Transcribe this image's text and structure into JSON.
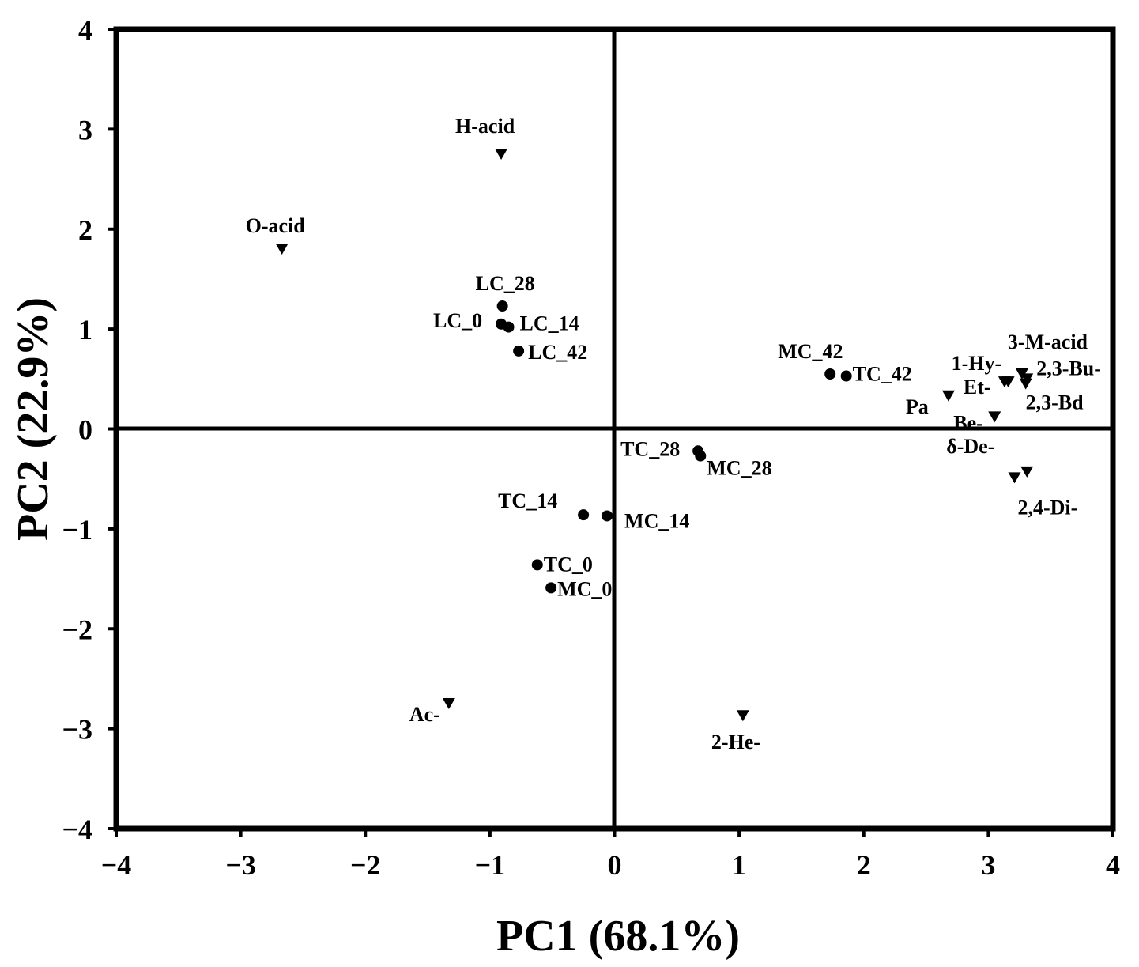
{
  "chart_data": {
    "type": "scatter",
    "title": "",
    "xlabel": "PC1 (68.1%)",
    "ylabel": "PC2 (22.9%)",
    "xlim": [
      -4,
      4
    ],
    "ylim": [
      -4,
      4
    ],
    "xticks": [
      "−4",
      "−3",
      "−2",
      "−1",
      "0",
      "1",
      "2",
      "3",
      "4"
    ],
    "yticks": [
      "4",
      "3",
      "2",
      "1",
      "0",
      "−1",
      "−2",
      "−3",
      "−4"
    ],
    "grid": false,
    "legend": "none",
    "colors": {
      "marker": "#000000",
      "axis": "#000000"
    },
    "series": [
      {
        "marker": "circle",
        "points": [
          {
            "label": "LC_28",
            "x": -0.9,
            "y": 1.23
          },
          {
            "label": "LC_0",
            "x": -0.91,
            "y": 1.05
          },
          {
            "label": "LC_14",
            "x": -0.85,
            "y": 1.02
          },
          {
            "label": "LC_42",
            "x": -0.77,
            "y": 0.78
          },
          {
            "label": "MC_42",
            "x": 1.73,
            "y": 0.55
          },
          {
            "label": "TC_42",
            "x": 1.86,
            "y": 0.53
          },
          {
            "label": "TC_28",
            "x": 0.67,
            "y": -0.22
          },
          {
            "label": "MC_28",
            "x": 0.69,
            "y": -0.27
          },
          {
            "label": "TC_14",
            "x": -0.25,
            "y": -0.86
          },
          {
            "label": "MC_14",
            "x": -0.06,
            "y": -0.87
          },
          {
            "label": "TC_0",
            "x": -0.62,
            "y": -1.36
          },
          {
            "label": "MC_0",
            "x": -0.51,
            "y": -1.59
          }
        ]
      },
      {
        "marker": "triangle-down",
        "points": [
          {
            "label": "H-acid",
            "x": -0.91,
            "y": 2.75
          },
          {
            "label": "O-acid",
            "x": -2.67,
            "y": 1.8
          },
          {
            "label": "3-M-acid",
            "x": 3.27,
            "y": 0.55
          },
          {
            "label": "1-Hy-",
            "x": 3.16,
            "y": 0.47
          },
          {
            "label": "2,3-Bu-",
            "x": 3.31,
            "y": 0.5
          },
          {
            "label": "Et-",
            "x": 3.13,
            "y": 0.47
          },
          {
            "label": "Pa",
            "x": 2.68,
            "y": 0.33
          },
          {
            "label": "2,3-Bd",
            "x": 3.3,
            "y": 0.45
          },
          {
            "label": "Be-",
            "x": 3.05,
            "y": 0.12
          },
          {
            "label": "δ-De-",
            "x": 3.31,
            "y": -0.43
          },
          {
            "label": "2,4-Di-",
            "x": 3.21,
            "y": -0.49
          },
          {
            "label": "Ac-",
            "x": -1.33,
            "y": -2.75
          },
          {
            "label": "2-He-",
            "x": 1.03,
            "y": -2.87
          }
        ]
      }
    ]
  }
}
